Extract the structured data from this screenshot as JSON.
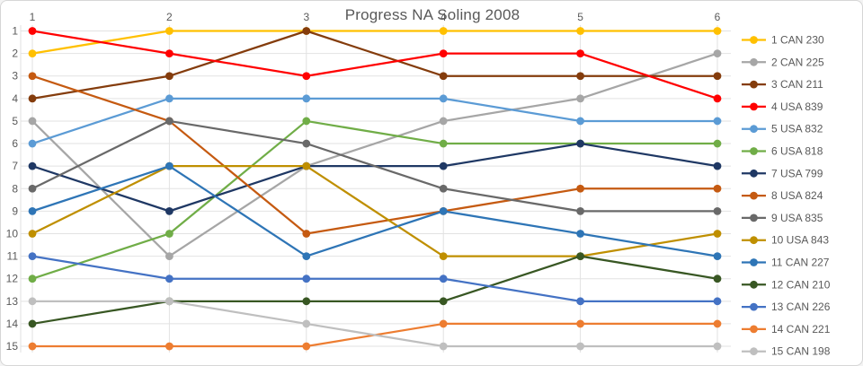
{
  "title": "Progress NA Soling 2008",
  "colors": {
    "background": "#FFFFFF",
    "border": "#D6D6D6",
    "grid": "#E2E2E2",
    "axis_text": "#595959",
    "title_text": "#595959"
  },
  "chart_data": {
    "type": "line",
    "subtype": "bump-chart-of-standings",
    "title": "Progress NA Soling 2008",
    "x": [
      "1",
      "2",
      "3",
      "4",
      "5",
      "6"
    ],
    "x_axis_position": "top",
    "xlabel": "",
    "ylabel": "",
    "y_axis": {
      "ticks": [
        "1",
        "2",
        "3",
        "4",
        "5",
        "6",
        "7",
        "8",
        "9",
        "10",
        "11",
        "12",
        "13",
        "14",
        "15"
      ],
      "min": 1,
      "max": 15,
      "inverted": true,
      "side": "left"
    },
    "grid": true,
    "legend_position": "right",
    "series": [
      {
        "name": "1 CAN 230",
        "color": "#FFC000",
        "positions": [
          2,
          1,
          1,
          1,
          1,
          1
        ]
      },
      {
        "name": "2 CAN 225",
        "color": "#A6A6A6",
        "positions": [
          5,
          11,
          7,
          5,
          4,
          2
        ]
      },
      {
        "name": "3 CAN 211",
        "color": "#843C0C",
        "positions": [
          4,
          3,
          1,
          3,
          3,
          3
        ]
      },
      {
        "name": "4 USA 839",
        "color": "#FF0000",
        "positions": [
          1,
          2,
          3,
          2,
          2,
          4
        ]
      },
      {
        "name": "5 USA 832",
        "color": "#5B9BD5",
        "positions": [
          6,
          4,
          4,
          4,
          5,
          5
        ]
      },
      {
        "name": "6 USA 818",
        "color": "#70AD47",
        "positions": [
          12,
          10,
          5,
          6,
          6,
          6
        ]
      },
      {
        "name": "7 USA 799",
        "color": "#1F3864",
        "positions": [
          7,
          9,
          7,
          7,
          6,
          7
        ]
      },
      {
        "name": "8 USA 824",
        "color": "#C55A11",
        "positions": [
          3,
          5,
          10,
          9,
          8,
          8
        ]
      },
      {
        "name": "9 USA 835",
        "color": "#696969",
        "positions": [
          8,
          5,
          6,
          8,
          9,
          9
        ]
      },
      {
        "name": "10 USA 843",
        "color": "#BF8F00",
        "positions": [
          10,
          7,
          7,
          11,
          11,
          10
        ]
      },
      {
        "name": "11 CAN 227",
        "color": "#2E75B6",
        "positions": [
          9,
          7,
          11,
          9,
          10,
          11
        ]
      },
      {
        "name": "12 CAN 210",
        "color": "#385723",
        "positions": [
          14,
          13,
          13,
          13,
          11,
          12
        ]
      },
      {
        "name": "13 CAN 226",
        "color": "#4472C4",
        "positions": [
          11,
          12,
          12,
          12,
          13,
          13
        ]
      },
      {
        "name": "14 CAN 221",
        "color": "#ED7D31",
        "positions": [
          15,
          15,
          15,
          14,
          14,
          14
        ]
      },
      {
        "name": "15 CAN 198",
        "color": "#BFBFBF",
        "positions": [
          13,
          13,
          14,
          15,
          15,
          15
        ]
      }
    ]
  }
}
